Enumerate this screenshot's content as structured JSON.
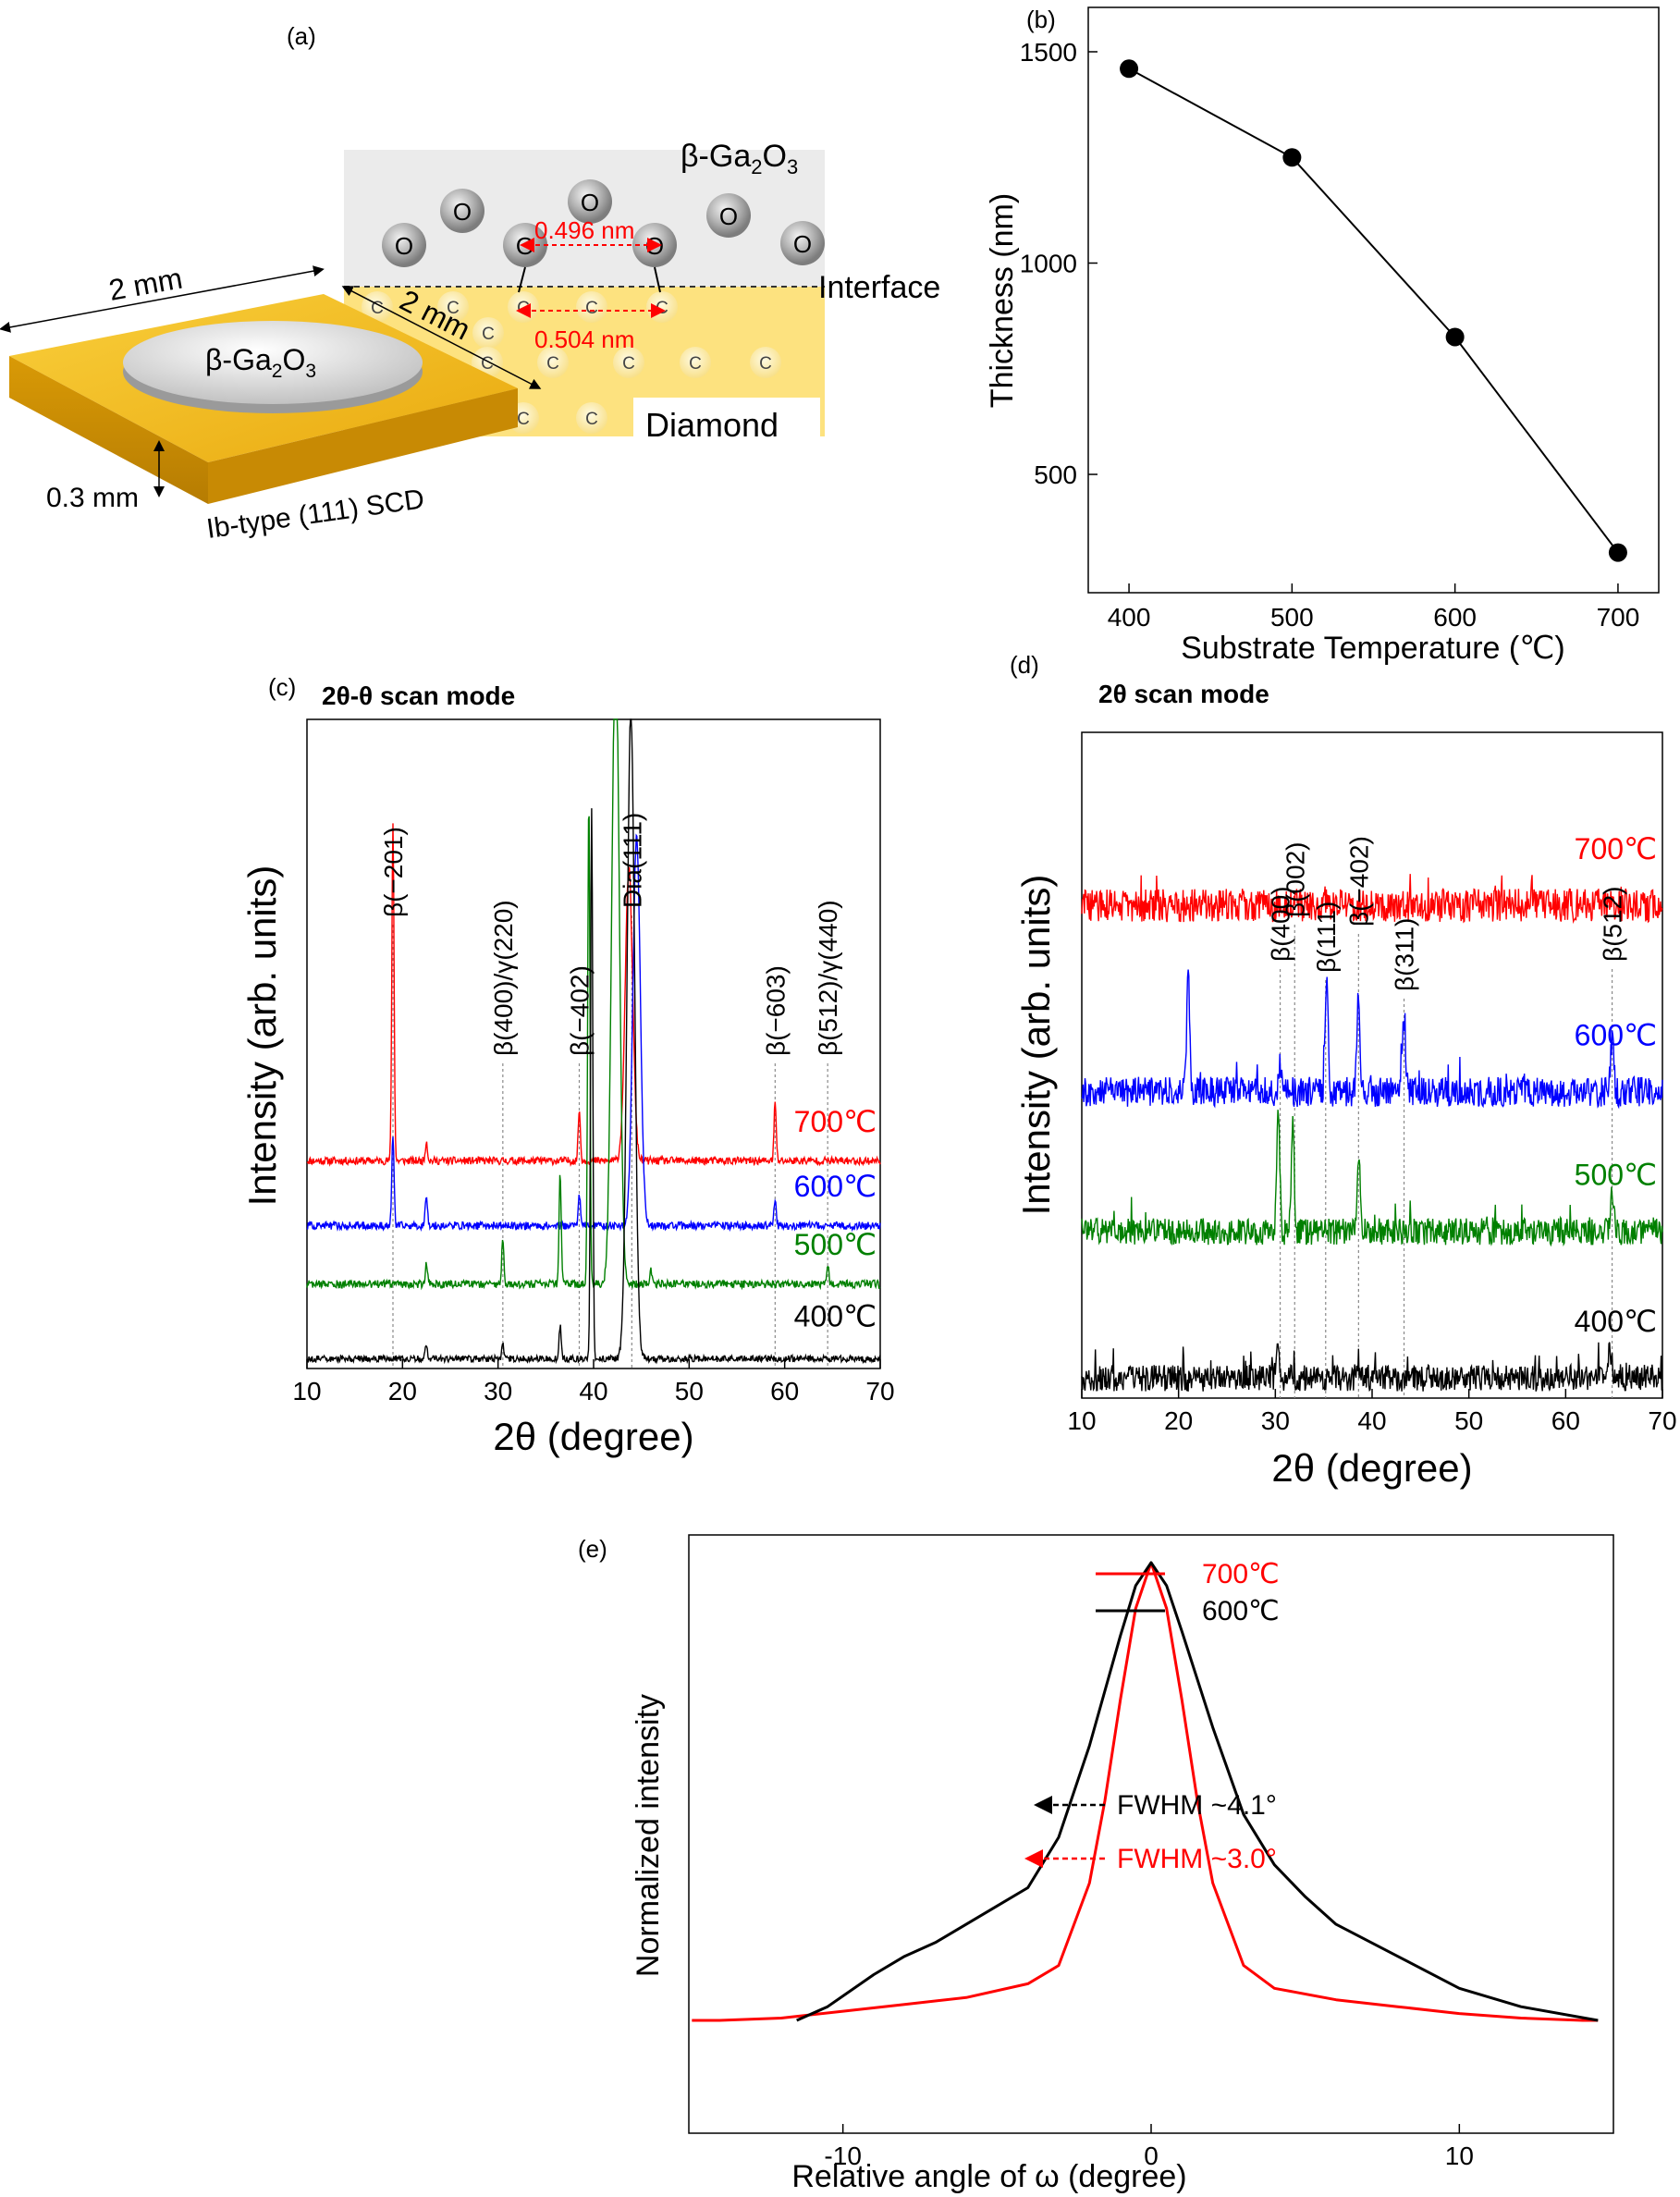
{
  "panel_labels": [
    "(a)",
    "(b)",
    "(c)",
    "(d)",
    "(e)"
  ],
  "schematic": {
    "film_label": "β-Ga2O3",
    "film_label_main": "β-Ga",
    "film_label_sub1": "2",
    "film_label_mid": "O",
    "film_label_sub2": "3",
    "dim_width": "2 mm",
    "dim_depth": "2 mm",
    "dim_thickness": "0.3 mm",
    "substrate_label": "Ib-type (111) SCD",
    "interface_label": "Interface",
    "diamond_label": "Diamond",
    "o_spacing": "0.496 nm",
    "c_spacing": "0.504 nm",
    "o_atom": "O",
    "c_atom": "C"
  },
  "colors": {
    "t700": "#ff0000",
    "t600": "#0000ff",
    "t500": "#008000",
    "t400": "#000000",
    "substrate": "#f6c12a",
    "film_region": "#ebebeb",
    "diamond_region": "#fde27f"
  },
  "chart_data": [
    {
      "panel": "(b)",
      "type": "line",
      "xlabel": "Substrate Temperature (℃)",
      "ylabel": "Thickness (nm)",
      "xlim": [
        375,
        725
      ],
      "ylim": [
        220,
        1605
      ],
      "xticks": [
        400,
        500,
        600,
        700
      ],
      "yticks": [
        500,
        1000,
        1500
      ],
      "x": [
        400,
        500,
        600,
        700
      ],
      "y": [
        1460,
        1250,
        825,
        315
      ],
      "grid": false
    },
    {
      "panel": "(c)",
      "type": "line",
      "title": "2θ-θ scan mode",
      "xlabel": "2θ (degree)",
      "ylabel": "Intensity (arb. units)",
      "xlim": [
        10,
        70
      ],
      "xticks": [
        10,
        20,
        30,
        40,
        50,
        60,
        70
      ],
      "peak_labels": [
        {
          "text": "β(−201)",
          "x": 19
        },
        {
          "text": "β(400)/γ(220)",
          "x": 30.5
        },
        {
          "text": "β(−402)",
          "x": 38.5
        },
        {
          "text": "Dia(111)",
          "x": 44
        },
        {
          "text": "β(−603)",
          "x": 59
        },
        {
          "text": "β(512)/γ(440)",
          "x": 64.5
        }
      ],
      "series": [
        {
          "name": "700℃",
          "color": "#ff0000",
          "baseline": 0.32,
          "peaks": [
            [
              19,
              0.52
            ],
            [
              22.5,
              0.03
            ],
            [
              38.5,
              0.08
            ],
            [
              43.7,
              0.45
            ],
            [
              59,
              0.09
            ]
          ]
        },
        {
          "name": "600℃",
          "color": "#0000ff",
          "baseline": 0.22,
          "peaks": [
            [
              19,
              0.14
            ],
            [
              22.5,
              0.05
            ],
            [
              38.5,
              0.05
            ],
            [
              44.5,
              0.6
            ],
            [
              59,
              0.04
            ]
          ]
        },
        {
          "name": "500℃",
          "color": "#008000",
          "baseline": 0.13,
          "peaks": [
            [
              22.5,
              0.03
            ],
            [
              30.5,
              0.07
            ],
            [
              36.5,
              0.17
            ],
            [
              39.5,
              0.75
            ],
            [
              42.3,
              1.0
            ],
            [
              46,
              0.02
            ],
            [
              64.5,
              0.03
            ]
          ]
        },
        {
          "name": "400℃",
          "color": "#000000",
          "baseline": 0.015,
          "peaks": [
            [
              22.5,
              0.02
            ],
            [
              30.5,
              0.02
            ],
            [
              36.5,
              0.05
            ],
            [
              39.8,
              0.85
            ],
            [
              43.9,
              1.0
            ]
          ]
        }
      ]
    },
    {
      "panel": "(d)",
      "type": "line",
      "title": "2θ scan mode",
      "xlabel": "2θ (degree)",
      "ylabel": "Intensity (arb. units)",
      "xlim": [
        10,
        70
      ],
      "xticks": [
        10,
        20,
        30,
        40,
        50,
        60,
        70
      ],
      "peak_labels": [
        {
          "text": "β(400)",
          "x": 30.5
        },
        {
          "text": "β(002)",
          "x": 32
        },
        {
          "text": "β(111)",
          "x": 35.2
        },
        {
          "text": "β(−402)",
          "x": 38.6
        },
        {
          "text": "β(311)",
          "x": 43.3
        },
        {
          "text": "β(512)",
          "x": 64.8
        }
      ],
      "series": [
        {
          "name": "700℃",
          "color": "#ff0000",
          "baseline": 0.74,
          "peaks": []
        },
        {
          "name": "600℃",
          "color": "#0000ff",
          "baseline": 0.46,
          "peaks": [
            [
              21,
              0.18
            ],
            [
              30.5,
              0.05
            ],
            [
              35.3,
              0.16
            ],
            [
              38.6,
              0.15
            ],
            [
              43.3,
              0.11
            ],
            [
              64.8,
              0.08
            ]
          ]
        },
        {
          "name": "500℃",
          "color": "#008000",
          "baseline": 0.25,
          "peaks": [
            [
              30.3,
              0.18
            ],
            [
              31.8,
              0.16
            ],
            [
              38.6,
              0.12
            ],
            [
              64.8,
              0.06
            ]
          ]
        },
        {
          "name": "400℃",
          "color": "#000000",
          "baseline": 0.03,
          "peaks": [
            [
              30.2,
              0.05
            ],
            [
              64.5,
              0.04
            ]
          ]
        }
      ]
    },
    {
      "panel": "(e)",
      "type": "line",
      "xlabel": "Relative angle of ω (degree)",
      "ylabel": "Normalized intensity",
      "xlim": [
        -15,
        15
      ],
      "xticks": [
        -10,
        0,
        10
      ],
      "legend": "top-right",
      "series": [
        {
          "name": "700℃",
          "color": "#ff0000",
          "fwhm": 3.0,
          "x": [
            -14,
            -12,
            -10,
            -8,
            -6,
            -4,
            -3,
            -2,
            -1.5,
            -1,
            -0.5,
            0,
            0.5,
            1,
            1.5,
            2,
            3,
            4,
            6,
            8,
            10,
            12,
            14
          ],
          "y": [
            0.0,
            0.005,
            0.02,
            0.035,
            0.05,
            0.08,
            0.12,
            0.3,
            0.48,
            0.7,
            0.9,
            1.0,
            0.9,
            0.7,
            0.48,
            0.3,
            0.12,
            0.07,
            0.045,
            0.03,
            0.015,
            0.005,
            0.0
          ]
        },
        {
          "name": "600℃",
          "color": "#000000",
          "fwhm": 4.1,
          "x": [
            -11.5,
            -10.5,
            -9,
            -8,
            -7,
            -6,
            -5,
            -4,
            -3,
            -2,
            -1,
            -0.5,
            0,
            0.5,
            1,
            2,
            3,
            4,
            5,
            6,
            8,
            10,
            12,
            14.5
          ],
          "y": [
            0.0,
            0.03,
            0.1,
            0.14,
            0.17,
            0.21,
            0.25,
            0.29,
            0.4,
            0.6,
            0.84,
            0.95,
            1.0,
            0.95,
            0.85,
            0.64,
            0.45,
            0.34,
            0.27,
            0.21,
            0.14,
            0.07,
            0.03,
            0.0
          ]
        }
      ],
      "annotations": [
        {
          "text": "FWHM ~4.1°",
          "color": "#000000"
        },
        {
          "text": "FWHM ~3.0°",
          "color": "#ff0000"
        }
      ]
    }
  ]
}
